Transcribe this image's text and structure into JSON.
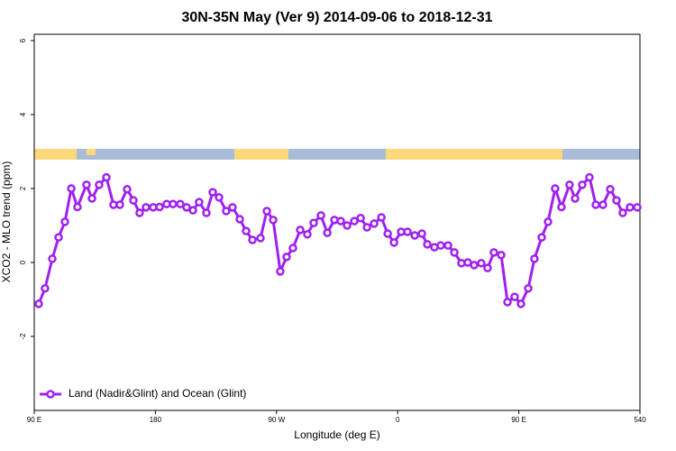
{
  "chart_data": {
    "type": "line",
    "title": "30N-35N May (Ver 9)   2014-09-06 to 2018-12-31",
    "x_label": "Longitude (deg E)",
    "y_label": "XCO2 - MLO trend (ppm)",
    "xlim": [
      90,
      540
    ],
    "ylim": [
      -4,
      6.17
    ],
    "xticks": [
      {
        "value": 90,
        "label": "90 E"
      },
      180,
      {
        "value": 270,
        "label": "90 W"
      },
      {
        "value": 360,
        "label": "0"
      },
      {
        "value": 450,
        "label": "90 E"
      },
      540
    ],
    "yticks": [
      -2,
      0,
      2,
      4,
      6
    ],
    "legend": "bottom-left",
    "x": [
      93.3,
      98,
      103.4,
      108.1,
      112.8,
      117.5,
      122.1,
      128.8,
      132.9,
      138.2,
      143.6,
      148.9,
      153.6,
      159,
      163.7,
      168.3,
      173,
      178.4,
      183.1,
      188.4,
      193.1,
      198.5,
      203.2,
      207.9,
      212.5,
      217.9,
      222.6,
      227.3,
      232.6,
      237.3,
      242.7,
      247.4,
      252.1,
      258.1,
      262.8,
      267.5,
      272.8,
      277.5,
      282.2,
      287.6,
      292.9,
      297.6,
      303,
      307.7,
      313,
      317.7,
      322.4,
      327.8,
      332.5,
      337.2,
      342.5,
      347.9,
      352.6,
      357.3,
      362.6,
      367.3,
      372.7,
      378,
      382,
      387.3,
      392,
      397.4,
      402.1,
      407.4,
      412.1,
      416.8,
      422.1,
      426.8,
      431.5,
      436.9,
      441.6,
      446.9,
      451.6,
      457,
      461.6,
      467,
      471.7,
      477,
      481.7,
      487.7,
      491.8,
      497.1,
      502.5,
      507.2,
      512.5,
      517.9,
      522.6,
      527.2,
      532.6,
      538
    ],
    "series": [
      {
        "name": "Land (Nadir&Glint) and Ocean (Glint)",
        "color": "#a020f0",
        "values": [
          -1.12,
          -0.7,
          0.1,
          0.68,
          1.1,
          2,
          1.5,
          2.1,
          1.73,
          2.1,
          2.3,
          1.56,
          1.56,
          1.98,
          1.68,
          1.34,
          1.49,
          1.49,
          1.5,
          1.58,
          1.58,
          1.58,
          1.49,
          1.41,
          1.63,
          1.34,
          1.9,
          1.76,
          1.39,
          1.49,
          1.17,
          0.85,
          0.61,
          0.66,
          1.39,
          1.15,
          -0.24,
          0.15,
          0.39,
          0.88,
          0.76,
          1.07,
          1.27,
          0.8,
          1.15,
          1.12,
          1,
          1.12,
          1.2,
          0.95,
          1.05,
          1.22,
          0.78,
          0.54,
          0.83,
          0.83,
          0.73,
          0.78,
          0.49,
          0.41,
          0.46,
          0.46,
          0.27,
          -0.02,
          0,
          -0.07,
          -0.02,
          -0.15,
          0.27,
          0.2,
          -1.07,
          -0.93,
          -1.12,
          -0.7,
          0.1,
          0.68,
          1.1,
          2,
          1.5,
          2.1,
          1.73,
          2.1,
          2.3,
          1.56,
          1.56,
          1.98,
          1.68,
          1.34,
          1.49,
          1.49
        ]
      }
    ]
  }
}
